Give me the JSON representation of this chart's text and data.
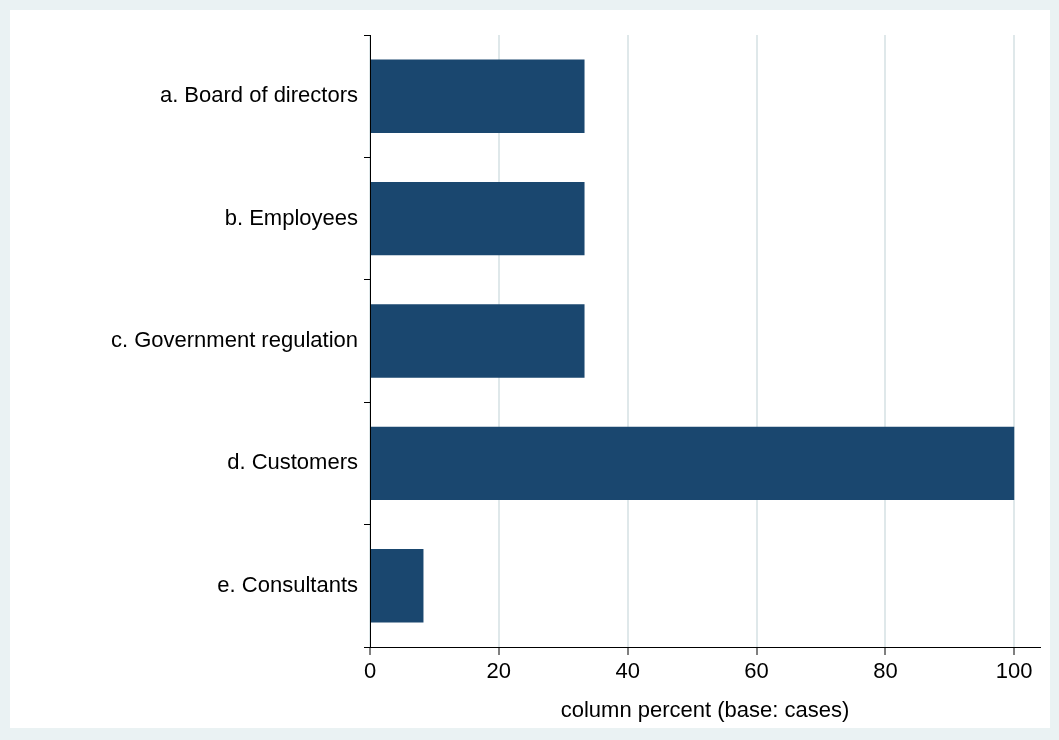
{
  "chart_data": {
    "type": "bar",
    "orientation": "horizontal",
    "xlabel": "column percent (base: cases)",
    "categories": [
      "a. Board of directors",
      "b. Employees",
      "c. Government regulation",
      "d. Customers",
      "e. Consultants"
    ],
    "values": [
      33.3,
      33.3,
      33.3,
      100,
      8.3
    ],
    "color": "#1a476f",
    "xlim": [
      0,
      104
    ],
    "xticks": [
      0,
      20,
      40,
      60,
      80,
      100
    ],
    "grid": "x",
    "legend": false
  }
}
